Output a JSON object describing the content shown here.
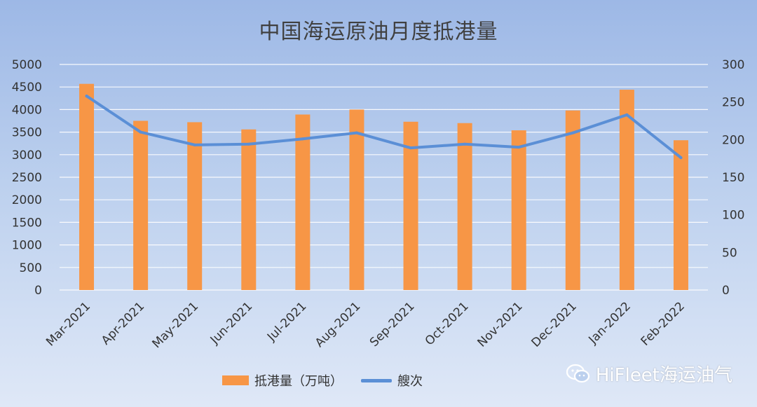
{
  "chart_data": {
    "type": "bar+line",
    "title": "中国海运原油月度抵港量",
    "categories": [
      "Mar-2021",
      "Apr-2021",
      "May-2021",
      "Jun-2021",
      "Jul-2021",
      "Aug-2021",
      "Sep-2021",
      "Oct-2021",
      "Nov-2021",
      "Dec-2021",
      "Jan-2022",
      "Feb-2022"
    ],
    "series": [
      {
        "name": "抵港量（万吨）",
        "type": "bar",
        "axis": "left",
        "color": "#f79646",
        "values": [
          4570,
          3750,
          3720,
          3560,
          3890,
          4000,
          3730,
          3700,
          3540,
          3980,
          4440,
          3320
        ]
      },
      {
        "name": "艘次",
        "type": "line",
        "axis": "right",
        "color": "#5b8fd6",
        "values": [
          258,
          210,
          193,
          194,
          201,
          209,
          189,
          194,
          190,
          209,
          233,
          176
        ]
      }
    ],
    "y_left": {
      "ylim": [
        0,
        5000
      ],
      "ticks": [
        "0",
        "500",
        "1000",
        "1500",
        "2000",
        "2500",
        "3000",
        "3500",
        "4000",
        "4500",
        "5000"
      ]
    },
    "y_right": {
      "ylim": [
        0,
        300
      ],
      "ticks": [
        "0",
        "50",
        "100",
        "150",
        "200",
        "250",
        "300"
      ]
    },
    "grid": true,
    "legend_position": "bottom"
  },
  "legend": {
    "bar_label": "抵港量（万吨）",
    "line_label": "艘次"
  },
  "watermark": {
    "text": "HiFleet海运油气",
    "icon": "wechat-icon"
  }
}
